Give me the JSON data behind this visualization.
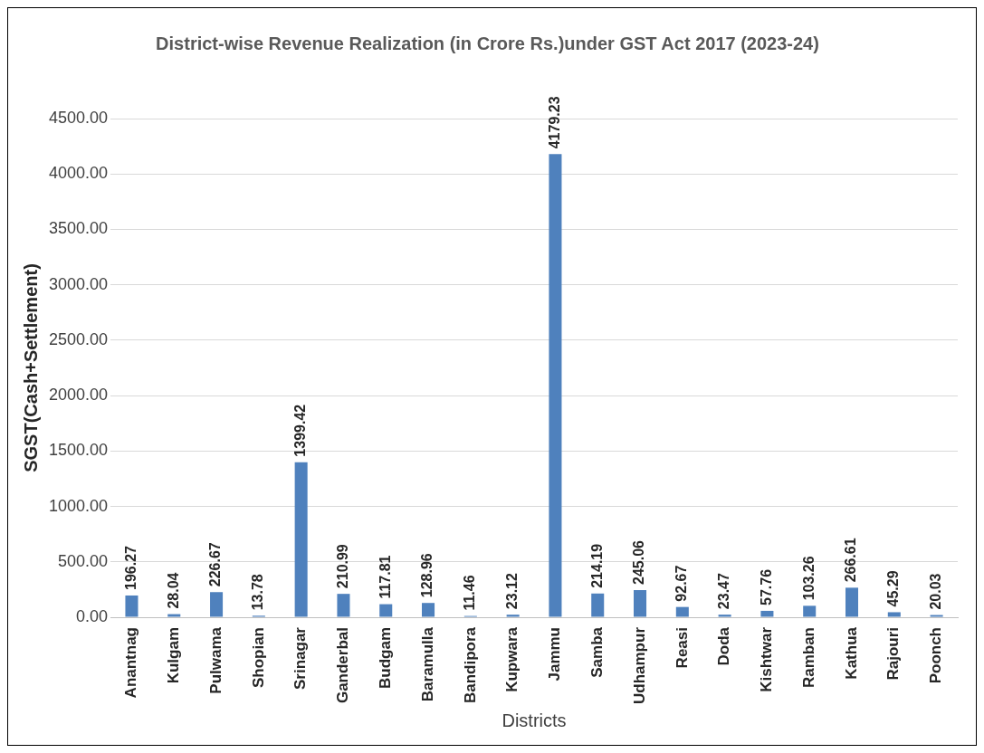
{
  "chart_data": {
    "type": "bar",
    "title": "District-wise Revenue Realization (in Crore Rs.)under GST Act 2017 (2023-24)",
    "xlabel": "Districts",
    "ylabel": "SGST(Cash+Settlement)",
    "categories": [
      "Anantnag",
      "Kulgam",
      "Pulwama",
      "Shopian",
      "Srinagar",
      "Ganderbal",
      "Budgam",
      "Baramulla",
      "Bandipora",
      "Kupwara",
      "Jammu",
      "Samba",
      "Udhampur",
      "Reasi",
      "Doda",
      "Kishtwar",
      "Ramban",
      "Kathua",
      "Rajouri",
      "Poonch"
    ],
    "values": [
      196.27,
      28.04,
      226.67,
      13.78,
      1399.42,
      210.99,
      117.81,
      128.96,
      11.46,
      23.12,
      4179.23,
      214.19,
      245.06,
      92.67,
      23.47,
      57.76,
      103.26,
      266.61,
      45.29,
      20.03
    ],
    "color": "#4f81bd",
    "ylim": [
      0,
      4500
    ],
    "yticks": [
      {
        "value": 0,
        "label": "0.00"
      },
      {
        "value": 500,
        "label": "500.00"
      },
      {
        "value": 1000,
        "label": "1000.00"
      },
      {
        "value": 1500,
        "label": "1500.00"
      },
      {
        "value": 2000,
        "label": "2000.00"
      },
      {
        "value": 2500,
        "label": "2500.00"
      },
      {
        "value": 3000,
        "label": "3000.00"
      },
      {
        "value": 3500,
        "label": "3500.00"
      },
      {
        "value": 4000,
        "label": "4000.00"
      },
      {
        "value": 4500,
        "label": "4500.00"
      }
    ],
    "grid": "y",
    "data_labels": true,
    "legend": false
  }
}
